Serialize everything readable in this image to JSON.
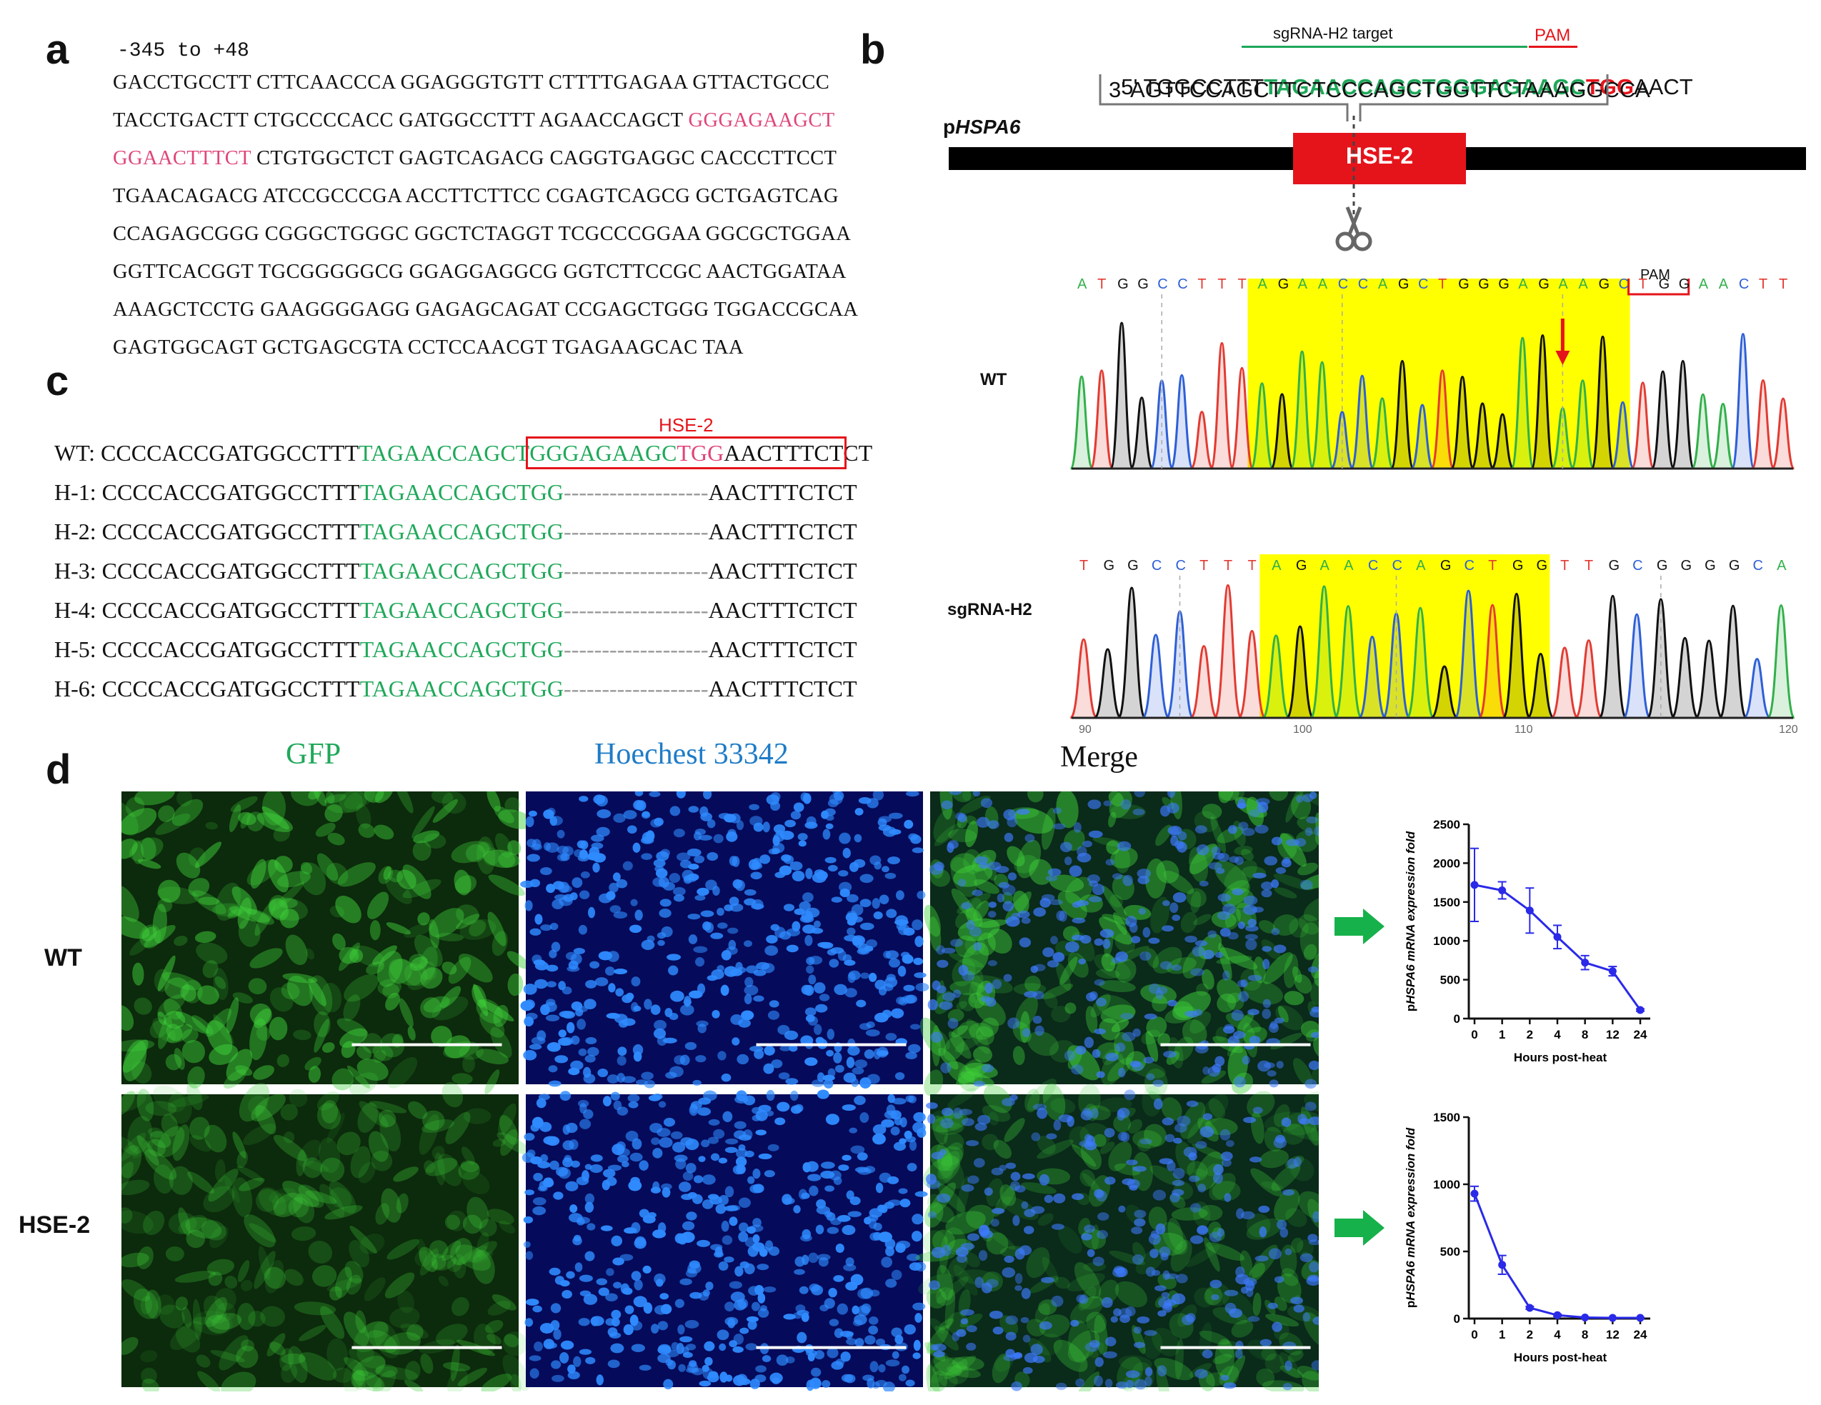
{
  "panel_a": {
    "letter": "a",
    "range_label": "-345 to +48",
    "lines": [
      [
        {
          "t": "GACCTGCCTT CTTCAACCCA GGAGGGTGTT CTTTTGAGAA GTTACTGCCC",
          "c": "k"
        }
      ],
      [
        {
          "t": "TACCTGACTT CTGCCCCACC GATGGCCTTT AGAACCAGCT ",
          "c": "k"
        },
        {
          "t": "GGGAGAAGCT",
          "c": "p"
        }
      ],
      [
        {
          "t": "GGAACTTTCT",
          "c": "p"
        },
        {
          "t": " CTGTGGCTCT GAGTCAGACG CAGGTGAGGC CACCCTTCCT",
          "c": "k"
        }
      ],
      [
        {
          "t": "TGAACAGACG ATCCGCCCGA ACCTTCTTCC CGAGTCAGCG GCTGAGTCAG",
          "c": "k"
        }
      ],
      [
        {
          "t": "CCAGAGCGGG CGGGCTGGGC GGCTCTAGGT TCGCCCGGAA GGCGCTGGAA",
          "c": "k"
        }
      ],
      [
        {
          "t": "GGTTCACGGT TGCGGGGGCG GGAGGAGGCG GGTCTTCCGC AACTGGATAA",
          "c": "k"
        }
      ],
      [
        {
          "t": "AAAGCTCCTG GAAGGGGAGG GAGAGCAGAT CCGAGCTGGG TGGACCGCAA",
          "c": "k"
        }
      ],
      [
        {
          "t": "GAGTGGCAGT GCTGAGCGTA CCTCCAACGT TGAGAAGCAC TAA",
          "c": "k"
        }
      ]
    ]
  },
  "panel_b": {
    "letter": "b",
    "target_label": "sgRNA-H2 target",
    "pam_label": "PAM",
    "seq5_prefix": "5' TGGCCTTT",
    "seq5_target": "TAGAACCAGCTGGGAGAAGC",
    "seq5_pam": "TGG",
    "seq5_suffix": "AACT",
    "seq3": "3' AGTTCCAGCTTCTCCCAGCTGGTTCTAAAGGCCA",
    "promoter_prefix": "p",
    "promoter_italic": "HSPA6",
    "hse_box": "HSE-2",
    "chromatogram": {
      "wt_label": "WT",
      "sg_label": "sgRNA-H2",
      "pam_small": "PAM",
      "wt_bases": [
        "A",
        "T",
        "G",
        "G",
        "C",
        "C",
        "T",
        "T",
        "T",
        "A",
        "G",
        "A",
        "A",
        "C",
        "C",
        "A",
        "G",
        "C",
        "T",
        "G",
        "G",
        "G",
        "A",
        "G",
        "A",
        "A",
        "G",
        "C",
        "T",
        "G",
        "G",
        "A",
        "A",
        "C",
        "T",
        "T"
      ],
      "sg_bases": [
        "T",
        "G",
        "G",
        "C",
        "C",
        "T",
        "T",
        "T",
        "A",
        "G",
        "A",
        "A",
        "C",
        "C",
        "A",
        "G",
        "C",
        "T",
        "G",
        "G",
        "T",
        "T",
        "G",
        "C",
        "G",
        "G",
        "G",
        "G",
        "C",
        "A"
      ],
      "axis_ticks": [
        "90",
        "100",
        "110",
        "120"
      ]
    }
  },
  "panel_c": {
    "letter": "c",
    "hse_label": "HSE-2",
    "rows": [
      {
        "label": "WT:",
        "prefix": "CCCCACCGATGGCCTTT",
        "green": "TAGAACCAGCT",
        "boxed_green": "GGGAGAAGC",
        "boxed_red": "TGG",
        "boxed_black": "AACTTTCT",
        "suffix": "CT",
        "wt": true
      },
      {
        "label": "H-1:",
        "prefix": "CCCCACCGATGGCCTTT",
        "green": "TAGAACCAGCTGG",
        "gap": "-------------------",
        "suffix": "AACTTTCTCT"
      },
      {
        "label": "H-2:",
        "prefix": "CCCCACCGATGGCCTTT",
        "green": "TAGAACCAGCTGG",
        "gap": "-------------------",
        "suffix": "AACTTTCTCT"
      },
      {
        "label": "H-3:",
        "prefix": "CCCCACCGATGGCCTTT",
        "green": "TAGAACCAGCTGG",
        "gap": "-------------------",
        "suffix": "AACTTTCTCT"
      },
      {
        "label": "H-4:",
        "prefix": "CCCCACCGATGGCCTTT",
        "green": "TAGAACCAGCTGG",
        "gap": "-------------------",
        "suffix": "AACTTTCTCT"
      },
      {
        "label": "H-5:",
        "prefix": "CCCCACCGATGGCCTTT",
        "green": "TAGAACCAGCTGG",
        "gap": "-------------------",
        "suffix": "AACTTTCTCT"
      },
      {
        "label": "H-6:",
        "prefix": "CCCCACCGATGGCCTTT",
        "green": "TAGAACCAGCTGG",
        "gap": "-------------------",
        "suffix": "AACTTTCTCT"
      }
    ]
  },
  "panel_d": {
    "letter": "d",
    "col_gfp": "GFP",
    "col_hoechst": "Hoechest 33342",
    "col_merge": "Merge",
    "row_wt": "WT",
    "row_hse": "HSE-2"
  },
  "colors": {
    "green_seq": "#1fa85a",
    "pink_seq": "#e0457a",
    "red": "#e5141b",
    "line_blue": "#2a2ae8",
    "arrow_green": "#16b14a",
    "highlight": "#ffff00"
  },
  "chart_data": [
    {
      "type": "line",
      "x": [
        0,
        1,
        2,
        4,
        8,
        12,
        24
      ],
      "x_ticks": [
        "0",
        "1",
        "2",
        "4",
        "8",
        "12",
        "24"
      ],
      "values": [
        1720,
        1650,
        1390,
        1050,
        720,
        610,
        110
      ],
      "errors": [
        470,
        110,
        290,
        150,
        90,
        60,
        15
      ],
      "ylim": [
        0,
        2500
      ],
      "yticks": [
        "0",
        "500",
        "1000",
        "1500",
        "2000",
        "2500"
      ],
      "xlabel": "Hours post-heat",
      "ylabel_prefix": "p",
      "ylabel_italic": "HSPA6 mRNA expression fold",
      "title": ""
    },
    {
      "type": "line",
      "x": [
        0,
        1,
        2,
        4,
        8,
        12,
        24
      ],
      "x_ticks": [
        "0",
        "1",
        "2",
        "4",
        "8",
        "12",
        "24"
      ],
      "values": [
        930,
        400,
        80,
        25,
        8,
        5,
        5
      ],
      "errors": [
        55,
        70,
        10,
        8,
        4,
        3,
        3
      ],
      "ylim": [
        0,
        1500
      ],
      "yticks": [
        "0",
        "500",
        "1000",
        "1500"
      ],
      "xlabel": "Hours post-heat",
      "ylabel_prefix": "p",
      "ylabel_italic": "HSPA6 mRNA expression fold",
      "title": ""
    }
  ]
}
